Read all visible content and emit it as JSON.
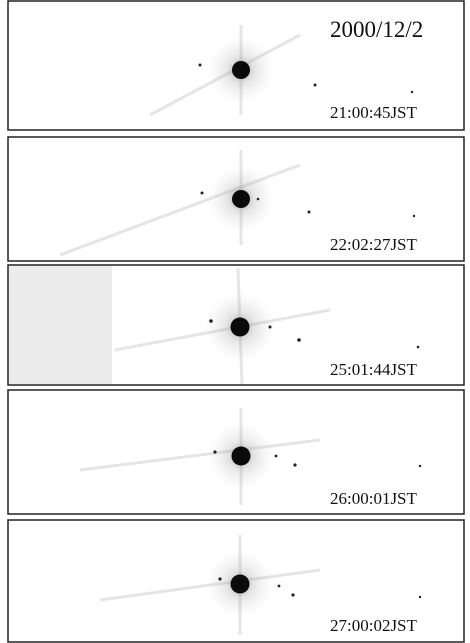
{
  "date": "2000/12/2",
  "frames": [
    {
      "time": "21:00:45JST"
    },
    {
      "time": "22:02:27JST"
    },
    {
      "time": "25:01:44JST"
    },
    {
      "time": "26:00:01JST"
    },
    {
      "time": "27:00:02JST"
    }
  ]
}
